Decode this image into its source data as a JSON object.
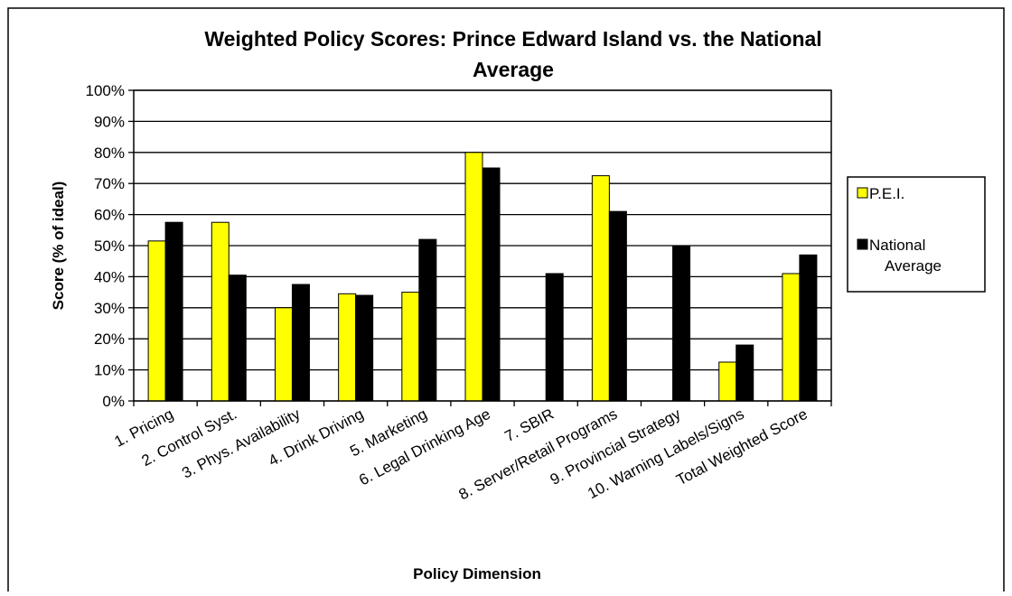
{
  "chart_data": {
    "type": "bar",
    "title_line1": "Weighted Policy Scores: Prince Edward Island vs. the National",
    "title_line2": "Average",
    "xlabel": "Policy Dimension",
    "ylabel": "Score (% of ideal)",
    "ylim": [
      0,
      100
    ],
    "yticks": [
      "0%",
      "10%",
      "20%",
      "30%",
      "40%",
      "50%",
      "60%",
      "70%",
      "80%",
      "90%",
      "100%"
    ],
    "grid": true,
    "legend_position": "right",
    "categories": [
      "1. Pricing",
      "2. Control Syst.",
      "3. Phys. Availability",
      "4. Drink Driving",
      "5. Marketing",
      "6. Legal Drinking Age",
      "7. SBIR",
      "8. Server/Retail Programs",
      "9. Provincial Strategy",
      "10. Warning Labels/Signs",
      "Total Weighted Score"
    ],
    "series": [
      {
        "name": "P.E.I.",
        "color": "#ffff00",
        "values": [
          51.5,
          57.5,
          30,
          34.5,
          35,
          80,
          0,
          72.5,
          0,
          12.5,
          41
        ]
      },
      {
        "name": "National Average",
        "color": "#000000",
        "values": [
          57.5,
          40.5,
          37.5,
          34,
          52,
          75,
          41,
          61,
          50,
          18,
          47
        ]
      }
    ],
    "legend": {
      "pei_label": "P.E.I.",
      "national_label_line1": "National",
      "national_label_line2": "Average"
    }
  }
}
